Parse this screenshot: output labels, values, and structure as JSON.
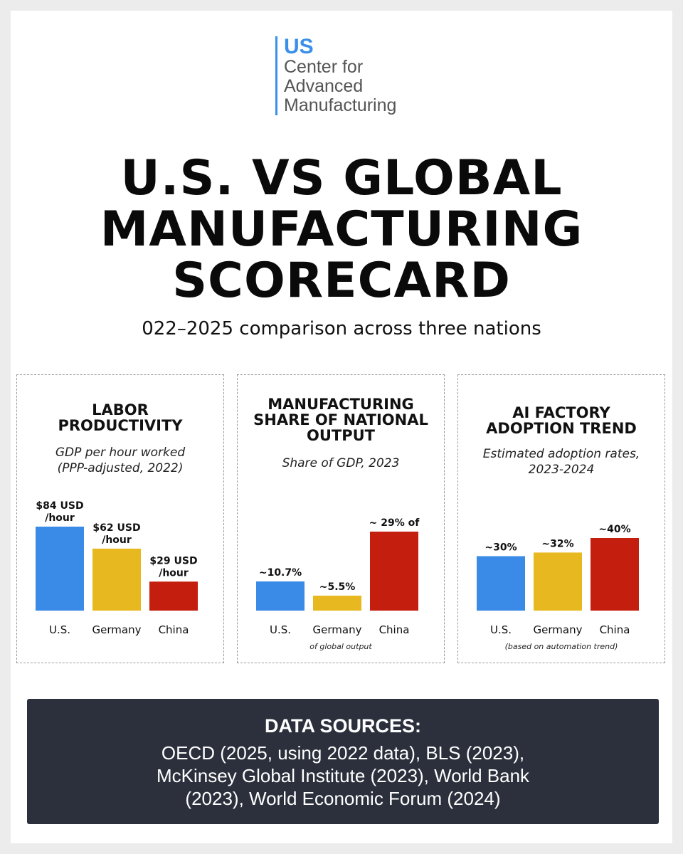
{
  "logo": {
    "us": "US",
    "lines": [
      "Center for",
      "Advanced",
      "Manufacturing"
    ]
  },
  "title": {
    "line1": "U.S. VS GLOBAL",
    "line2": "MANUFACTURING",
    "line3": "SCORECARD"
  },
  "subtitle": "022–2025 comparison across three nations",
  "colors": {
    "us": "#3a8ae8",
    "germany": "#e8b820",
    "china": "#c41e0e"
  },
  "chart_data": [
    {
      "type": "bar",
      "title_lines": [
        "LABOR",
        "PRODUCTIVITY"
      ],
      "subtitle_lines": [
        "GDP per hour worked",
        "(PPP-adjusted, 2022)"
      ],
      "categories": [
        "U.S.",
        "Germany",
        "China"
      ],
      "values": [
        84,
        62,
        29
      ],
      "value_labels": [
        [
          "$84 USD",
          "/hour"
        ],
        [
          "$62 USD",
          "/hour"
        ],
        [
          "$29 USD",
          "/hour"
        ]
      ],
      "ylim": [
        0,
        84
      ],
      "note": ""
    },
    {
      "type": "bar",
      "title_lines": [
        "MANUFACTURING",
        "SHARE OF NATIONAL",
        "OUTPUT"
      ],
      "subtitle_lines": [
        "Share of GDP, 2023"
      ],
      "categories": [
        "U.S.",
        "Germany",
        "China"
      ],
      "values": [
        10.7,
        5.5,
        29
      ],
      "value_labels": [
        [
          "~10.7%"
        ],
        [
          "~5.5%"
        ],
        [
          "~ 29% of"
        ]
      ],
      "ylim": [
        0,
        29
      ],
      "note": "of global output"
    },
    {
      "type": "bar",
      "title_lines": [
        "AI FACTORY",
        "ADOPTION TREND"
      ],
      "subtitle_lines": [
        "Estimated adoption rates,",
        "2023-2024"
      ],
      "categories": [
        "U.S.",
        "Germany",
        "China"
      ],
      "values": [
        30,
        32,
        40
      ],
      "value_labels": [
        [
          "~30%"
        ],
        [
          "~32%"
        ],
        [
          "~40%"
        ]
      ],
      "ylim": [
        0,
        40
      ],
      "note": "(based on automation trend)"
    }
  ],
  "sources": {
    "title": "DATA SOURCES:",
    "text": "OECD (2025, using 2022 data), BLS (2023), McKinsey Global Institute (2023), World Bank (2023), World Economic Forum (2024)"
  }
}
